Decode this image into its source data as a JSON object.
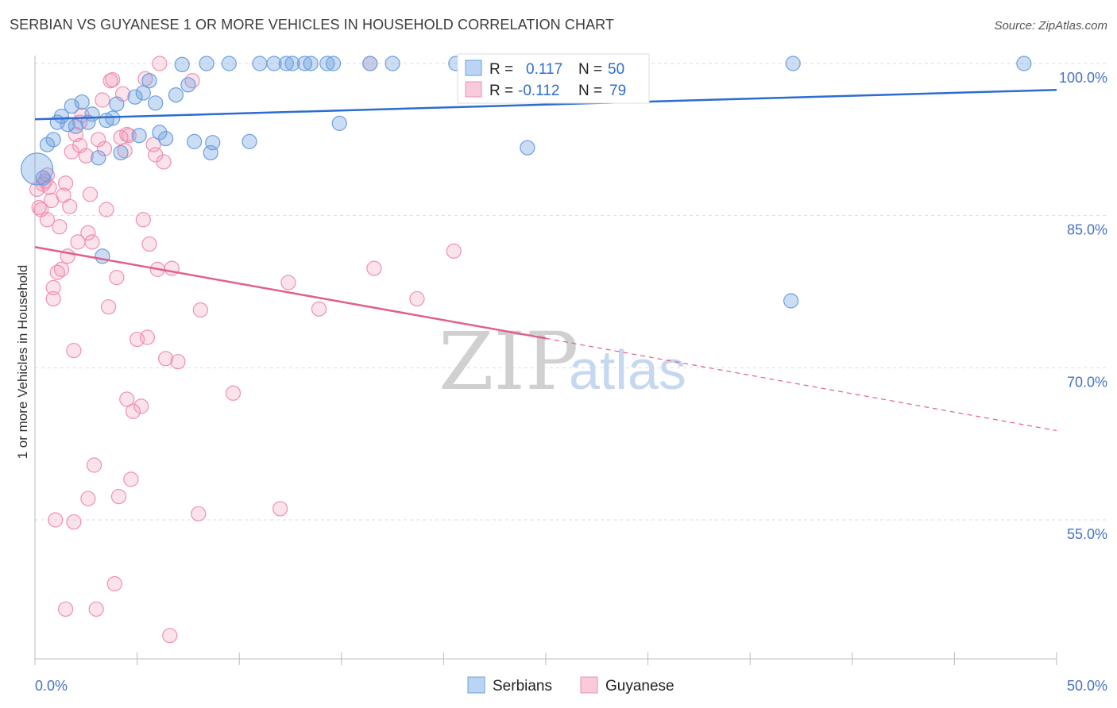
{
  "title": "SERBIAN VS GUYANESE 1 OR MORE VEHICLES IN HOUSEHOLD CORRELATION CHART",
  "source": "Source: ZipAtlas.com",
  "watermark": {
    "zip": "ZIP",
    "atlas": "atlas"
  },
  "colors": {
    "serbians": "#6a9fe0",
    "guyanese": "#f08fb0",
    "serbians_line": "#2d6cd1",
    "guyanese_line": "#e0608a",
    "axis_text": "#4472c4"
  },
  "legend": {
    "r_label": "R =",
    "n_label": "N =",
    "serbians": {
      "r": "0.117",
      "n": "50"
    },
    "guyanese": {
      "r": "-0.112",
      "n": "79"
    }
  },
  "bottom_legend": [
    "Serbians",
    "Guyanese"
  ],
  "chart_data": {
    "type": "scatter",
    "title": "SERBIAN VS GUYANESE 1 OR MORE VEHICLES IN HOUSEHOLD CORRELATION CHART",
    "xlabel": "",
    "ylabel": "1 or more Vehicles in Household",
    "xlim": [
      0,
      50
    ],
    "ylim": [
      42,
      101
    ],
    "x_tick_labels": [
      "0.0%",
      "50.0%"
    ],
    "y_ticks": [
      100,
      85,
      70,
      55
    ],
    "y_tick_labels": [
      "100.0%",
      "85.0%",
      "70.0%",
      "55.0%"
    ],
    "series": [
      {
        "name": "Serbians",
        "r": 0.117,
        "n": 50,
        "trend": {
          "x": [
            0,
            50
          ],
          "y": [
            94.5,
            97.4
          ]
        },
        "points": [
          [
            0.1,
            89.6
          ],
          [
            0.4,
            88.7
          ],
          [
            0.6,
            92.0
          ],
          [
            0.9,
            92.5
          ],
          [
            1.1,
            94.2
          ],
          [
            1.3,
            94.8
          ],
          [
            1.6,
            94.0
          ],
          [
            1.8,
            95.8
          ],
          [
            2.0,
            93.8
          ],
          [
            2.3,
            96.2
          ],
          [
            2.6,
            94.2
          ],
          [
            2.8,
            95.0
          ],
          [
            3.1,
            90.7
          ],
          [
            3.5,
            94.4
          ],
          [
            3.8,
            94.6
          ],
          [
            4.0,
            96.0
          ],
          [
            4.2,
            91.2
          ],
          [
            4.9,
            96.7
          ],
          [
            5.1,
            92.9
          ],
          [
            5.3,
            97.1
          ],
          [
            5.6,
            98.3
          ],
          [
            5.9,
            96.1
          ],
          [
            6.1,
            93.2
          ],
          [
            6.4,
            92.6
          ],
          [
            6.9,
            96.9
          ],
          [
            7.2,
            99.9
          ],
          [
            7.5,
            97.9
          ],
          [
            7.8,
            92.3
          ],
          [
            8.4,
            100.0
          ],
          [
            8.6,
            91.2
          ],
          [
            8.7,
            92.2
          ],
          [
            9.5,
            100.0
          ],
          [
            10.5,
            92.3
          ],
          [
            11.0,
            100.0
          ],
          [
            11.7,
            100.0
          ],
          [
            12.3,
            100.0
          ],
          [
            12.6,
            100.0
          ],
          [
            13.2,
            100.0
          ],
          [
            13.5,
            100.0
          ],
          [
            14.3,
            100.0
          ],
          [
            14.6,
            100.0
          ],
          [
            14.9,
            94.1
          ],
          [
            16.4,
            100.0
          ],
          [
            17.5,
            100.0
          ],
          [
            20.6,
            100.0
          ],
          [
            24.1,
            91.7
          ],
          [
            37.0,
            76.6
          ],
          [
            37.1,
            100.0
          ],
          [
            48.4,
            100.0
          ],
          [
            3.3,
            81.0
          ]
        ]
      },
      {
        "name": "Guyanese",
        "r": -0.112,
        "n": 79,
        "trend": {
          "x": [
            0,
            25
          ],
          "y": [
            81.9,
            72.9
          ]
        },
        "trend_ext": {
          "x": [
            25,
            50
          ],
          "y": [
            72.9,
            63.8
          ]
        },
        "points": [
          [
            0.1,
            87.6
          ],
          [
            0.2,
            85.8
          ],
          [
            0.3,
            85.6
          ],
          [
            0.4,
            88.1
          ],
          [
            0.5,
            88.4
          ],
          [
            0.6,
            84.6
          ],
          [
            0.7,
            87.8
          ],
          [
            0.9,
            76.8
          ],
          [
            0.9,
            77.9
          ],
          [
            1.1,
            79.4
          ],
          [
            1.2,
            83.9
          ],
          [
            1.3,
            79.7
          ],
          [
            1.4,
            87.0
          ],
          [
            1.5,
            88.2
          ],
          [
            1.6,
            81.0
          ],
          [
            1.7,
            85.9
          ],
          [
            1.8,
            91.3
          ],
          [
            1.9,
            71.7
          ],
          [
            1.9,
            54.8
          ],
          [
            2.0,
            93.0
          ],
          [
            2.1,
            82.4
          ],
          [
            2.2,
            91.9
          ],
          [
            2.3,
            94.9
          ],
          [
            2.5,
            90.9
          ],
          [
            2.6,
            83.3
          ],
          [
            2.7,
            87.1
          ],
          [
            2.8,
            82.4
          ],
          [
            2.9,
            60.4
          ],
          [
            3.0,
            46.2
          ],
          [
            3.1,
            92.5
          ],
          [
            3.3,
            96.4
          ],
          [
            3.4,
            91.6
          ],
          [
            3.5,
            85.6
          ],
          [
            3.6,
            76.0
          ],
          [
            3.7,
            98.3
          ],
          [
            3.8,
            98.4
          ],
          [
            3.9,
            48.7
          ],
          [
            4.0,
            78.9
          ],
          [
            4.1,
            57.3
          ],
          [
            4.2,
            92.7
          ],
          [
            4.3,
            97.0
          ],
          [
            4.4,
            91.4
          ],
          [
            4.5,
            66.9
          ],
          [
            4.6,
            92.9
          ],
          [
            4.7,
            59.0
          ],
          [
            4.8,
            65.7
          ],
          [
            5.0,
            72.8
          ],
          [
            5.2,
            66.2
          ],
          [
            5.3,
            84.6
          ],
          [
            5.4,
            98.5
          ],
          [
            5.5,
            73.0
          ],
          [
            5.6,
            82.2
          ],
          [
            5.8,
            92.0
          ],
          [
            6.0,
            79.7
          ],
          [
            6.1,
            100.0
          ],
          [
            6.3,
            90.3
          ],
          [
            6.4,
            70.9
          ],
          [
            6.6,
            43.6
          ],
          [
            6.7,
            79.8
          ],
          [
            7.0,
            70.6
          ],
          [
            7.7,
            98.3
          ],
          [
            8.0,
            55.6
          ],
          [
            8.1,
            75.7
          ],
          [
            9.7,
            67.5
          ],
          [
            12.0,
            56.1
          ],
          [
            12.4,
            78.4
          ],
          [
            13.9,
            75.8
          ],
          [
            16.4,
            100.0
          ],
          [
            16.6,
            79.8
          ],
          [
            18.7,
            76.8
          ],
          [
            20.5,
            81.5
          ],
          [
            1.0,
            55.0
          ],
          [
            2.6,
            57.1
          ],
          [
            1.5,
            46.2
          ],
          [
            0.6,
            89.0
          ],
          [
            0.8,
            86.5
          ],
          [
            2.2,
            94.2
          ],
          [
            4.5,
            93.0
          ],
          [
            5.9,
            91.0
          ]
        ]
      }
    ]
  }
}
